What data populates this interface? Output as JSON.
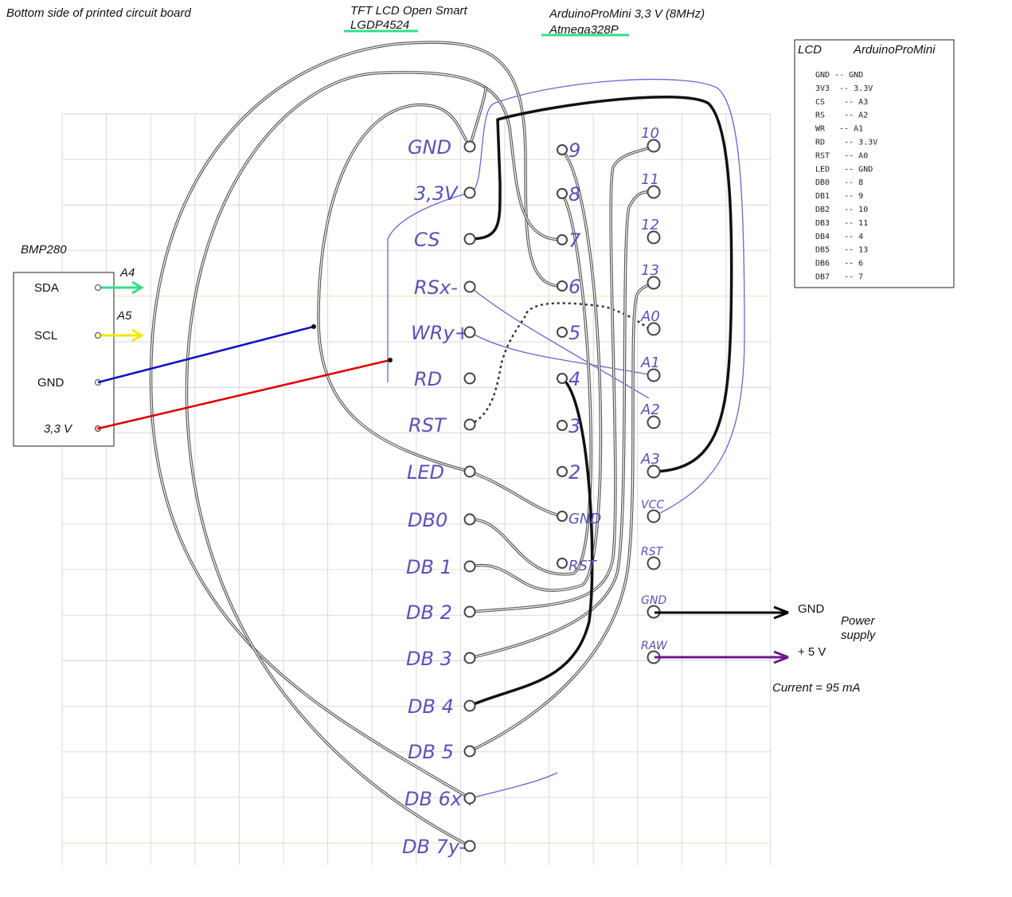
{
  "header": {
    "title": "Bottom side of printed circuit board",
    "lcd_title": "TFT LCD Open Smart",
    "lcd_model": "LGDP4524",
    "arduino_title": "ArduinoProMini 3,3 V (8MHz)",
    "arduino_chip": "Atmega328P"
  },
  "bmp280": {
    "title": "BMP280",
    "pins": [
      "SDA",
      "SCL",
      "GND",
      "3,3 V"
    ],
    "arrow_labels": [
      "A4",
      "A5"
    ]
  },
  "lcd_pins": [
    "GND",
    "3,3V",
    "CS",
    "RS",
    "WR",
    "RD",
    "RST",
    "LED",
    "DB0",
    "DB 1",
    "DB 2",
    "DB 3",
    "DB 4",
    "DB 5",
    "DB 6",
    "DB 7"
  ],
  "lcd_pin_suffixes": {
    "RS": "x-",
    "WR": "y+",
    "DB 6": "x+",
    "DB 7": "y-"
  },
  "arduino_left_pins": [
    "9",
    "8",
    "7",
    "6",
    "5",
    "4",
    "3",
    "2",
    "GND",
    "RST"
  ],
  "arduino_right_pins": [
    "10",
    "11",
    "12",
    "13",
    "A0",
    "A1",
    "A2",
    "A3",
    "VCC",
    "RST",
    "GND",
    "RAW"
  ],
  "table": {
    "header_left": "LCD",
    "header_right": "ArduinoProMini",
    "rows": [
      "GND -- GND",
      "3V3  -- 3.3V",
      "CS    -- A3",
      "RS    -- A2",
      "WR   -- A1",
      "RD    -- 3.3V",
      "RST   -- A0",
      "LED   -- GND",
      "DB0   -- 8",
      "DB1   -- 9",
      "DB2   -- 10",
      "DB3   -- 11",
      "DB4   -- 4",
      "DB5   -- 13",
      "DB6   -- 6",
      "DB7   -- 7"
    ]
  },
  "power": {
    "gnd_label": "GND",
    "vcc_label": "+ 5 V",
    "title": "Power\nsupply",
    "current": "Current = 95 mA"
  },
  "colors": {
    "green_arrow": "#33dd88",
    "yellow_arrow": "#f5e600",
    "gnd_wire": "#1010c0",
    "vcc_wire": "#dd0000",
    "power_gnd": "#000000",
    "power_vcc": "#6a1a8a",
    "pen": "#5a52b8",
    "pencil": "#555555"
  }
}
